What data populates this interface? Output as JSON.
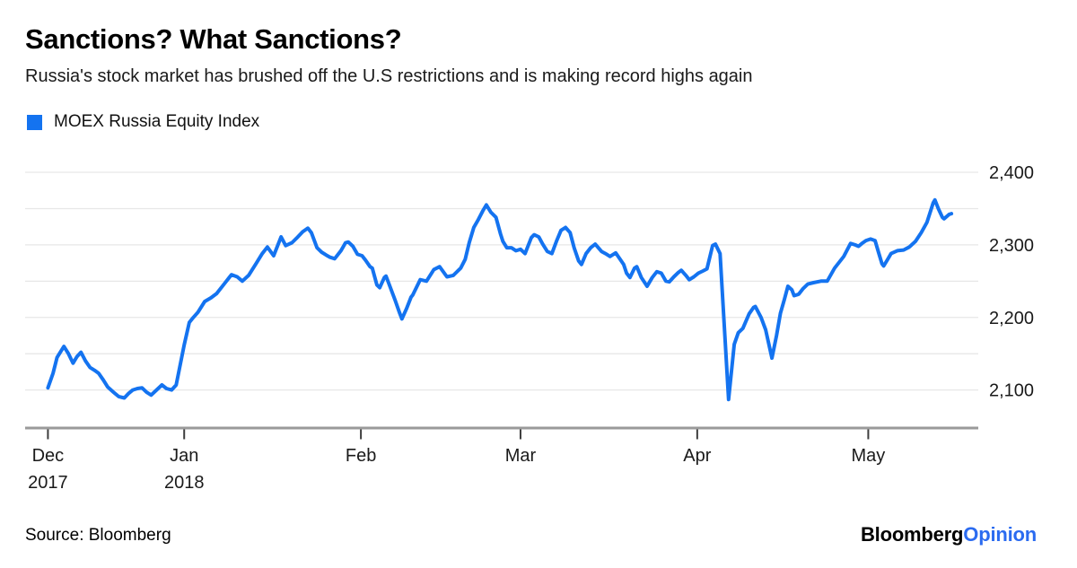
{
  "header": {
    "title": "Sanctions? What Sanctions?",
    "subtitle": "Russia's stock market has brushed off the U.S restrictions and is making record highs again"
  },
  "legend": {
    "label": "MOEX Russia Equity Index",
    "swatch_color": "#1473F0"
  },
  "footer": {
    "source": "Source: Bloomberg",
    "logo_black": "Bloomberg",
    "logo_blue": "Opinion"
  },
  "colors": {
    "line": "#1473F0",
    "grid": "#e7e7e7",
    "axis_line": "#9a9a9a",
    "tick_mark": "#3d3d3d",
    "axis_text": "#1a1a1a",
    "logo_blue": "#2B6BF0"
  },
  "chart_data": {
    "type": "line",
    "title": "Sanctions? What Sanctions?",
    "subtitle": "Russia's stock market has brushed off the U.S restrictions and is making record highs again",
    "grid": true,
    "legend_position": "top-left",
    "x_axis": {
      "unit": "days since 2017-12-01",
      "range": [
        3.1,
        170.3
      ],
      "ticks": [
        {
          "day": 7.1,
          "label": "Dec",
          "sublabel": "2017"
        },
        {
          "day": 31,
          "label": "Jan",
          "sublabel": "2018"
        },
        {
          "day": 62,
          "label": "Feb"
        },
        {
          "day": 90,
          "label": "Mar"
        },
        {
          "day": 121,
          "label": "Apr"
        },
        {
          "day": 151,
          "label": "May"
        }
      ]
    },
    "y_axis": {
      "range": [
        2048,
        2427
      ],
      "gridlines": [
        2100,
        2150,
        2200,
        2250,
        2300,
        2350,
        2400
      ],
      "labels": [
        {
          "value": 2400,
          "label": "2,400"
        },
        {
          "value": 2300,
          "label": "2,300"
        },
        {
          "value": 2200,
          "label": "2,200"
        },
        {
          "value": 2100,
          "label": "2,100"
        }
      ]
    },
    "series": [
      {
        "name": "MOEX Russia Equity Index",
        "color": "#1473F0",
        "points": [
          [
            7.1,
            2103
          ],
          [
            8.0,
            2123
          ],
          [
            8.7,
            2145
          ],
          [
            9.9,
            2160
          ],
          [
            10.7,
            2150
          ],
          [
            11.5,
            2137
          ],
          [
            12.2,
            2146
          ],
          [
            12.9,
            2152
          ],
          [
            13.7,
            2140
          ],
          [
            14.5,
            2131
          ],
          [
            15.3,
            2127
          ],
          [
            16.0,
            2123
          ],
          [
            16.8,
            2114
          ],
          [
            17.6,
            2104
          ],
          [
            18.6,
            2097
          ],
          [
            19.5,
            2091
          ],
          [
            20.5,
            2089
          ],
          [
            21.2,
            2095
          ],
          [
            22.0,
            2100
          ],
          [
            22.8,
            2102
          ],
          [
            23.6,
            2103
          ],
          [
            24.4,
            2097
          ],
          [
            25.2,
            2093
          ],
          [
            26.0,
            2099
          ],
          [
            27.1,
            2107
          ],
          [
            27.9,
            2102
          ],
          [
            28.8,
            2100
          ],
          [
            29.6,
            2107
          ],
          [
            31.0,
            2162
          ],
          [
            31.9,
            2193
          ],
          [
            32.6,
            2200
          ],
          [
            33.4,
            2207
          ],
          [
            34.6,
            2222
          ],
          [
            35.7,
            2227
          ],
          [
            36.7,
            2233
          ],
          [
            38.1,
            2247
          ],
          [
            39.3,
            2259
          ],
          [
            40.3,
            2256
          ],
          [
            41.2,
            2250
          ],
          [
            42.3,
            2258
          ],
          [
            43.6,
            2274
          ],
          [
            44.7,
            2288
          ],
          [
            45.6,
            2297
          ],
          [
            46.7,
            2285
          ],
          [
            48.0,
            2311
          ],
          [
            48.8,
            2299
          ],
          [
            49.9,
            2303
          ],
          [
            50.7,
            2309
          ],
          [
            51.8,
            2318
          ],
          [
            52.7,
            2323
          ],
          [
            53.3,
            2317
          ],
          [
            54.3,
            2296
          ],
          [
            55.1,
            2290
          ],
          [
            55.9,
            2286
          ],
          [
            56.6,
            2283
          ],
          [
            57.4,
            2281
          ],
          [
            58.5,
            2292
          ],
          [
            59.3,
            2303
          ],
          [
            59.8,
            2304
          ],
          [
            60.6,
            2298
          ],
          [
            61.4,
            2287
          ],
          [
            62.2,
            2285
          ],
          [
            62.8,
            2279
          ],
          [
            63.6,
            2270
          ],
          [
            64.0,
            2268
          ],
          [
            64.8,
            2245
          ],
          [
            65.3,
            2241
          ],
          [
            66.1,
            2255
          ],
          [
            66.4,
            2257
          ],
          [
            66.9,
            2247
          ],
          [
            68.0,
            2224
          ],
          [
            68.8,
            2206
          ],
          [
            69.2,
            2198
          ],
          [
            70.0,
            2212
          ],
          [
            70.8,
            2228
          ],
          [
            71.1,
            2231
          ],
          [
            72.4,
            2252
          ],
          [
            73.5,
            2250
          ],
          [
            74.8,
            2266
          ],
          [
            75.8,
            2270
          ],
          [
            77.1,
            2256
          ],
          [
            78.2,
            2258
          ],
          [
            79.5,
            2268
          ],
          [
            80.3,
            2280
          ],
          [
            81.0,
            2303
          ],
          [
            81.8,
            2324
          ],
          [
            82.6,
            2335
          ],
          [
            83.4,
            2347
          ],
          [
            84.0,
            2355
          ],
          [
            84.8,
            2345
          ],
          [
            85.7,
            2338
          ],
          [
            86.5,
            2315
          ],
          [
            86.9,
            2305
          ],
          [
            87.6,
            2296
          ],
          [
            88.4,
            2296
          ],
          [
            89.2,
            2292
          ],
          [
            90.0,
            2294
          ],
          [
            90.8,
            2288
          ],
          [
            91.9,
            2310
          ],
          [
            92.4,
            2314
          ],
          [
            93.2,
            2311
          ],
          [
            93.9,
            2301
          ],
          [
            94.7,
            2291
          ],
          [
            95.5,
            2288
          ],
          [
            96.3,
            2305
          ],
          [
            97.1,
            2320
          ],
          [
            97.9,
            2324
          ],
          [
            98.7,
            2317
          ],
          [
            99.4,
            2296
          ],
          [
            100.2,
            2278
          ],
          [
            100.7,
            2273
          ],
          [
            101.5,
            2288
          ],
          [
            102.3,
            2296
          ],
          [
            103.1,
            2301
          ],
          [
            104.2,
            2291
          ],
          [
            104.9,
            2288
          ],
          [
            105.7,
            2284
          ],
          [
            106.7,
            2289
          ],
          [
            108.1,
            2273
          ],
          [
            108.6,
            2261
          ],
          [
            109.2,
            2255
          ],
          [
            110.0,
            2268
          ],
          [
            110.4,
            2270
          ],
          [
            111.2,
            2255
          ],
          [
            112.2,
            2243
          ],
          [
            113.1,
            2255
          ],
          [
            113.9,
            2263
          ],
          [
            114.7,
            2261
          ],
          [
            115.5,
            2250
          ],
          [
            116.1,
            2249
          ],
          [
            116.9,
            2256
          ],
          [
            117.7,
            2262
          ],
          [
            118.2,
            2265
          ],
          [
            119.0,
            2258
          ],
          [
            119.6,
            2252
          ],
          [
            120.4,
            2256
          ],
          [
            121.2,
            2261
          ],
          [
            122.0,
            2264
          ],
          [
            122.7,
            2267
          ],
          [
            123.7,
            2299
          ],
          [
            124.2,
            2301
          ],
          [
            125.0,
            2288
          ],
          [
            126.5,
            2087
          ],
          [
            127.5,
            2163
          ],
          [
            128.2,
            2179
          ],
          [
            129.0,
            2185
          ],
          [
            130.1,
            2205
          ],
          [
            130.9,
            2214
          ],
          [
            131.2,
            2215
          ],
          [
            132.2,
            2200
          ],
          [
            133.0,
            2183
          ],
          [
            134.1,
            2144
          ],
          [
            134.9,
            2175
          ],
          [
            135.6,
            2206
          ],
          [
            136.3,
            2225
          ],
          [
            136.9,
            2243
          ],
          [
            137.6,
            2238
          ],
          [
            138.0,
            2230
          ],
          [
            138.8,
            2232
          ],
          [
            139.6,
            2240
          ],
          [
            140.4,
            2246
          ],
          [
            141.4,
            2248
          ],
          [
            142.7,
            2250
          ],
          [
            143.8,
            2250
          ],
          [
            145.1,
            2268
          ],
          [
            146.7,
            2284
          ],
          [
            147.9,
            2302
          ],
          [
            148.7,
            2300
          ],
          [
            149.3,
            2298
          ],
          [
            149.9,
            2302
          ],
          [
            150.6,
            2306
          ],
          [
            151.4,
            2308
          ],
          [
            152.2,
            2306
          ],
          [
            152.8,
            2290
          ],
          [
            153.4,
            2274
          ],
          [
            153.7,
            2271
          ],
          [
            154.4,
            2280
          ],
          [
            155.0,
            2288
          ],
          [
            156.1,
            2292
          ],
          [
            157.2,
            2293
          ],
          [
            158.2,
            2297
          ],
          [
            159.3,
            2305
          ],
          [
            160.3,
            2317
          ],
          [
            161.3,
            2331
          ],
          [
            162.4,
            2358
          ],
          [
            162.7,
            2362
          ],
          [
            163.3,
            2350
          ],
          [
            164.0,
            2338
          ],
          [
            164.3,
            2336
          ],
          [
            165.2,
            2342
          ],
          [
            165.6,
            2343
          ]
        ]
      }
    ]
  }
}
